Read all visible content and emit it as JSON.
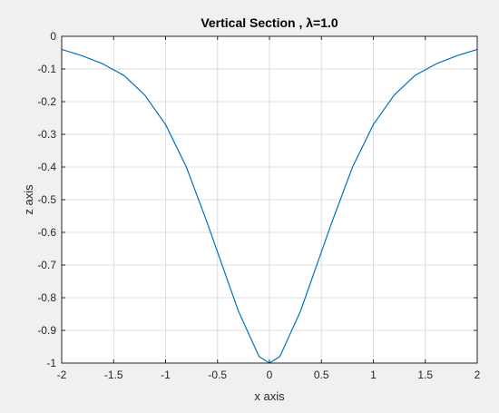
{
  "chart_data": {
    "type": "line",
    "title": "Vertical Section , λ=1.0",
    "xlabel": "x axis",
    "ylabel": "z axis",
    "xlim": [
      -2,
      2
    ],
    "ylim": [
      -1,
      0
    ],
    "grid": true,
    "xticks": [
      -2,
      -1.5,
      -1,
      -0.5,
      0,
      0.5,
      1,
      1.5,
      2
    ],
    "xtick_labels": [
      "-2",
      "-1.5",
      "-1",
      "-0.5",
      "0",
      "0.5",
      "1",
      "1.5",
      "2"
    ],
    "yticks": [
      0,
      -0.1,
      -0.2,
      -0.3,
      -0.4,
      -0.5,
      -0.6,
      -0.7,
      -0.8,
      -0.9,
      -1
    ],
    "ytick_labels": [
      "0",
      "-0.1",
      "-0.2",
      "-0.3",
      "-0.4",
      "-0.5",
      "-0.6",
      "-0.7",
      "-0.8",
      "-0.9",
      "-1"
    ],
    "series": [
      {
        "color": "#0072bd",
        "x": [
          -2,
          -1.8,
          -1.6,
          -1.4,
          -1.2,
          -1.0,
          -0.8,
          -0.6,
          -0.5,
          -0.4,
          -0.3,
          -0.2,
          -0.1,
          0,
          0.1,
          0.2,
          0.3,
          0.4,
          0.5,
          0.6,
          0.8,
          1.0,
          1.2,
          1.4,
          1.6,
          1.8,
          2
        ],
        "y": [
          -0.04,
          -0.06,
          -0.085,
          -0.12,
          -0.18,
          -0.27,
          -0.4,
          -0.57,
          -0.66,
          -0.75,
          -0.84,
          -0.91,
          -0.98,
          -1.0,
          -0.98,
          -0.91,
          -0.84,
          -0.75,
          -0.66,
          -0.57,
          -0.4,
          -0.27,
          -0.18,
          -0.12,
          -0.085,
          -0.06,
          -0.04
        ]
      }
    ]
  }
}
